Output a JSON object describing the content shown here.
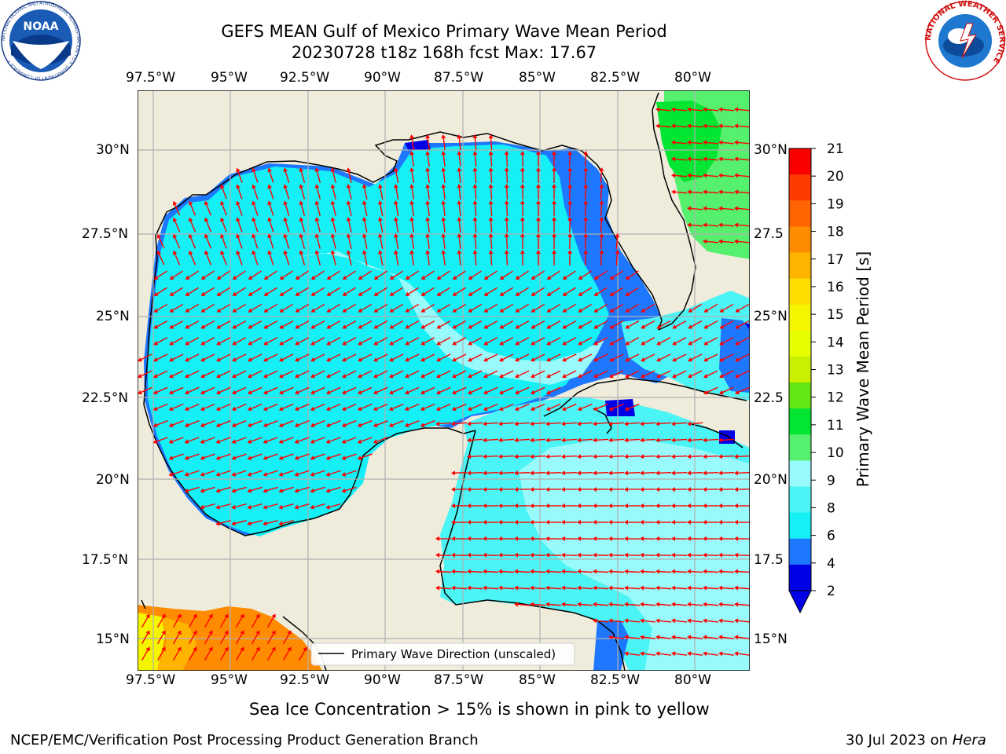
{
  "title": {
    "line1": "GEFS MEAN Gulf of Mexico Primary Wave Mean Period",
    "line2": "20230728 t18z 168h fcst   Max: 17.67"
  },
  "map": {
    "lon_labels": [
      "97.5°W",
      "95°W",
      "92.5°W",
      "90°W",
      "87.5°W",
      "85°W",
      "82.5°W",
      "80°W"
    ],
    "lat_labels_left": [
      "30°N",
      "27.5°N",
      "25°N",
      "22.5°N",
      "20°N",
      "17.5°N",
      "15°N"
    ],
    "lat_labels_right": [
      "30°N",
      "27.5",
      "25°N",
      "22.5",
      "20°N",
      "17.5",
      "15°N"
    ],
    "legend_label": "Primary Wave Direction (unscaled)",
    "colors": {
      "land": "#efecdc",
      "ocean_main": "#14f0f5",
      "ocean_light": "#98fafa",
      "ocean_mid": "#4cf5f5",
      "coastal_blue": "#1e78ff",
      "deep_blue": "#0000e6",
      "green": "#00e632",
      "light_green": "#55f06e",
      "arrow": "#ff0000",
      "grid": "#b0b0b0"
    }
  },
  "colorbar": {
    "label": "Primary Wave Mean Period [s]",
    "ticks": [
      "21",
      "20",
      "19",
      "18",
      "17",
      "16",
      "15",
      "14",
      "13",
      "12",
      "11",
      "10",
      "9",
      "8",
      "6",
      "4",
      "2"
    ],
    "colors": [
      "#fa0000",
      "#ff3a00",
      "#ff6400",
      "#ff8c00",
      "#ffb400",
      "#ffdc00",
      "#f5f500",
      "#e6ff00",
      "#c8f000",
      "#64e614",
      "#00e632",
      "#55f06e",
      "#98fafa",
      "#4cf5f5",
      "#14f0f5",
      "#1e78ff",
      "#0000e6"
    ]
  },
  "footer": {
    "caption": "Sea Ice Concentration > 15% is shown in pink to yellow",
    "left": "NCEP/EMC/Verification Post Processing Product Generation Branch",
    "right_date": "30 Jul 2023 on",
    "right_host": "Hera"
  },
  "logos": {
    "noaa": "NOAA",
    "noaa_ring": "NATIONAL OCEANIC AND ATMOSPHERIC ADMINISTRATION • U.S. DEPARTMENT OF COMMERCE •",
    "nws_ring": "NATIONAL WEATHER SERVICE"
  }
}
